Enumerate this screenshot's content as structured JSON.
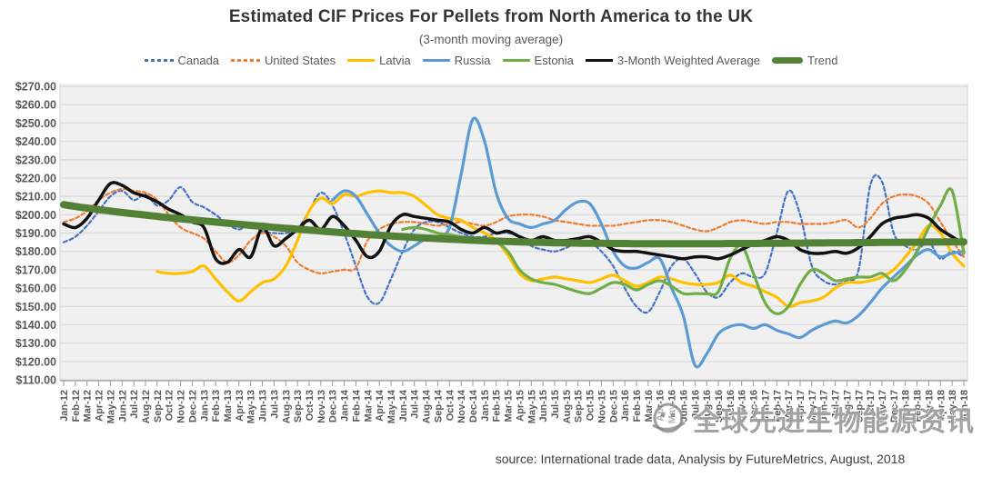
{
  "title": "Estimated CIF Prices For Pellets from North America to the UK",
  "subtitle": "(3-month moving average)",
  "source_note": "source: International trade data, Analysis by FutureMetrics, August, 2018",
  "watermark": {
    "icon": "globe-logo",
    "text": "全球先进生物能源资讯"
  },
  "chart_data": {
    "type": "line",
    "x": [
      "Jan-12",
      "Feb-12",
      "Mar-12",
      "Apr-12",
      "May-12",
      "Jun-12",
      "Jul-12",
      "Aug-12",
      "Sep-12",
      "Oct-12",
      "Nov-12",
      "Dec-12",
      "Jan-13",
      "Feb-13",
      "Mar-13",
      "Apr-13",
      "May-13",
      "Jun-13",
      "Jul-13",
      "Aug-13",
      "Sep-13",
      "Oct-13",
      "Nov-13",
      "Dec-13",
      "Jan-14",
      "Feb-14",
      "Mar-14",
      "Apr-14",
      "May-14",
      "Jun-14",
      "Jul-14",
      "Aug-14",
      "Sep-14",
      "Oct-14",
      "Nov-14",
      "Dec-14",
      "Jan-15",
      "Feb-15",
      "Mar-15",
      "Apr-15",
      "May-15",
      "Jun-15",
      "Jul-15",
      "Aug-15",
      "Sep-15",
      "Oct-15",
      "Nov-15",
      "Dec-15",
      "Jan-16",
      "Feb-16",
      "Mar-16",
      "Apr-16",
      "May-16",
      "Jun-16",
      "Jul-16",
      "Aug-16",
      "Sep-16",
      "Oct-16",
      "Nov-16",
      "Dec-16",
      "Jan-17",
      "Feb-17",
      "Mar-17",
      "Apr-17",
      "May-17",
      "Jun-17",
      "Jul-17",
      "Aug-17",
      "Sep-17",
      "Oct-17",
      "Nov-17",
      "Dec-17",
      "Jan-18",
      "Feb-18",
      "Mar-18",
      "Apr-18",
      "May-18",
      "Jun-18"
    ],
    "ylim": [
      110,
      270
    ],
    "y_ticks": [
      "$270.00",
      "$260.00",
      "$250.00",
      "$240.00",
      "$230.00",
      "$220.00",
      "$210.00",
      "$200.00",
      "$190.00",
      "$180.00",
      "$170.00",
      "$160.00",
      "$150.00",
      "$140.00",
      "$130.00",
      "$120.00",
      "$110.00"
    ],
    "grid": true,
    "legend_position": "top",
    "series": [
      {
        "name": "Canada",
        "color": "#4472C4",
        "dash": "4 3",
        "width": 2.2,
        "values": [
          185,
          188,
          194,
          202,
          210,
          213,
          208,
          211,
          205,
          208,
          215,
          207,
          204,
          200,
          195,
          192,
          195,
          191,
          190,
          190,
          192,
          202,
          212,
          205,
          190,
          172,
          155,
          152,
          165,
          180,
          192,
          196,
          196,
          193,
          190,
          188,
          188,
          190,
          190,
          188,
          183,
          181,
          180,
          182,
          185,
          185,
          180,
          172,
          160,
          150,
          147,
          158,
          172,
          176,
          168,
          158,
          155,
          163,
          168,
          166,
          168,
          190,
          213,
          200,
          172,
          164,
          162,
          164,
          170,
          216,
          218,
          190,
          183,
          181,
          185,
          176,
          180,
          177
        ]
      },
      {
        "name": "United States",
        "color": "#ED7D31",
        "dash": "4 3",
        "width": 2.2,
        "values": [
          196,
          198,
          202,
          208,
          212,
          214,
          213,
          212,
          208,
          200,
          193,
          190,
          187,
          180,
          174,
          178,
          186,
          190,
          188,
          183,
          174,
          170,
          168,
          169,
          170,
          171,
          186,
          192,
          195,
          196,
          196,
          195,
          194,
          195,
          196,
          195,
          194,
          196,
          199,
          200,
          200,
          199,
          197,
          196,
          195,
          194,
          194,
          194,
          195,
          196,
          197,
          197,
          196,
          194,
          192,
          191,
          193,
          196,
          197,
          196,
          195,
          196,
          196,
          195,
          195,
          195,
          196,
          197,
          193,
          198,
          206,
          210,
          211,
          210,
          206,
          196,
          186,
          177
        ]
      },
      {
        "name": "Latvia",
        "color": "#FFC000",
        "dash": null,
        "width": 3.2,
        "values": [
          null,
          null,
          null,
          null,
          null,
          null,
          null,
          null,
          169,
          168,
          168,
          169,
          172,
          165,
          158,
          153,
          158,
          163,
          165,
          172,
          186,
          202,
          209,
          206,
          211,
          210,
          212,
          213,
          212,
          212,
          210,
          205,
          200,
          198,
          197,
          193,
          190,
          186,
          178,
          168,
          164,
          165,
          166,
          165,
          164,
          163,
          165,
          167,
          164,
          161,
          163,
          166,
          165,
          163,
          162,
          162,
          163,
          167,
          163,
          161,
          158,
          155,
          150,
          152,
          153,
          155,
          160,
          163,
          163,
          164,
          166,
          170,
          177,
          185,
          194,
          190,
          179,
          172
        ]
      },
      {
        "name": "Russia",
        "color": "#5B9BD5",
        "dash": null,
        "width": 3.2,
        "values": [
          null,
          null,
          null,
          null,
          null,
          null,
          null,
          null,
          null,
          null,
          null,
          null,
          null,
          null,
          null,
          null,
          null,
          null,
          null,
          null,
          null,
          null,
          null,
          208,
          213,
          210,
          200,
          190,
          183,
          180,
          183,
          187,
          188,
          193,
          222,
          252,
          240,
          212,
          198,
          195,
          193,
          195,
          197,
          203,
          207,
          206,
          195,
          180,
          172,
          171,
          174,
          176,
          160,
          145,
          118,
          124,
          135,
          139,
          140,
          138,
          140,
          137,
          135,
          133,
          137,
          140,
          142,
          141,
          145,
          152,
          160,
          166,
          172,
          178,
          181,
          177,
          179,
          180
        ]
      },
      {
        "name": "Estonia",
        "color": "#70AD47",
        "dash": null,
        "width": 3.2,
        "values": [
          null,
          null,
          null,
          null,
          null,
          null,
          null,
          null,
          null,
          null,
          null,
          null,
          null,
          null,
          null,
          null,
          null,
          null,
          null,
          null,
          null,
          null,
          null,
          null,
          null,
          null,
          null,
          null,
          null,
          192,
          193,
          192,
          190,
          189,
          188,
          187,
          187,
          185,
          180,
          170,
          165,
          163,
          162,
          160,
          158,
          157,
          160,
          163,
          162,
          159,
          162,
          164,
          161,
          157,
          157,
          157,
          158,
          176,
          183,
          168,
          152,
          146,
          150,
          162,
          170,
          168,
          164,
          165,
          166,
          166,
          168,
          164,
          170,
          180,
          193,
          205,
          213,
          179
        ]
      },
      {
        "name": "3-Month Weighted Average",
        "color": "#111111",
        "dash": null,
        "width": 3.5,
        "values": [
          195,
          193,
          198,
          208,
          217,
          216,
          212,
          210,
          207,
          203,
          200,
          196,
          193,
          176,
          174,
          181,
          177,
          193,
          183,
          187,
          192,
          197,
          192,
          199,
          194,
          186,
          177,
          180,
          194,
          200,
          199,
          198,
          197,
          196,
          192,
          190,
          193,
          190,
          191,
          188,
          186,
          188,
          186,
          186,
          187,
          188,
          185,
          181,
          180,
          180,
          179,
          178,
          177,
          176,
          177,
          177,
          176,
          178,
          181,
          184,
          186,
          188,
          186,
          181,
          179,
          179,
          180,
          179,
          182,
          188,
          195,
          198,
          199,
          200,
          198,
          192,
          188,
          184
        ]
      },
      {
        "name": "Trend",
        "color": "#538135",
        "dash": null,
        "width": 8,
        "values": [
          205.5,
          204.5,
          203.6,
          202.8,
          202,
          201.2,
          200.5,
          199.8,
          199.1,
          198.4,
          197.8,
          197.2,
          196.6,
          196,
          195.4,
          194.8,
          194.2,
          193.7,
          193.1,
          192.6,
          192.1,
          191.6,
          191.1,
          190.6,
          190.1,
          189.7,
          189.2,
          188.8,
          188.4,
          188,
          187.6,
          187.3,
          187,
          186.7,
          186.4,
          186.1,
          185.8,
          185.6,
          185.4,
          185.2,
          185,
          184.9,
          184.7,
          184.6,
          184.5,
          184.4,
          184.4,
          184.3,
          184.3,
          184.2,
          184.2,
          184.2,
          184.2,
          184.2,
          184.2,
          184.2,
          184.2,
          184.3,
          184.3,
          184.3,
          184.4,
          184.4,
          184.5,
          184.5,
          184.6,
          184.6,
          184.7,
          184.7,
          184.8,
          184.8,
          184.9,
          184.9,
          185,
          185,
          185.1,
          185.1,
          185.2,
          185.2
        ]
      }
    ]
  },
  "style": {
    "plot_bg": "#f0f0f0",
    "grid_color": "#dcdcdc",
    "axis_color": "#9a9a9a",
    "label_color": "#595959"
  }
}
